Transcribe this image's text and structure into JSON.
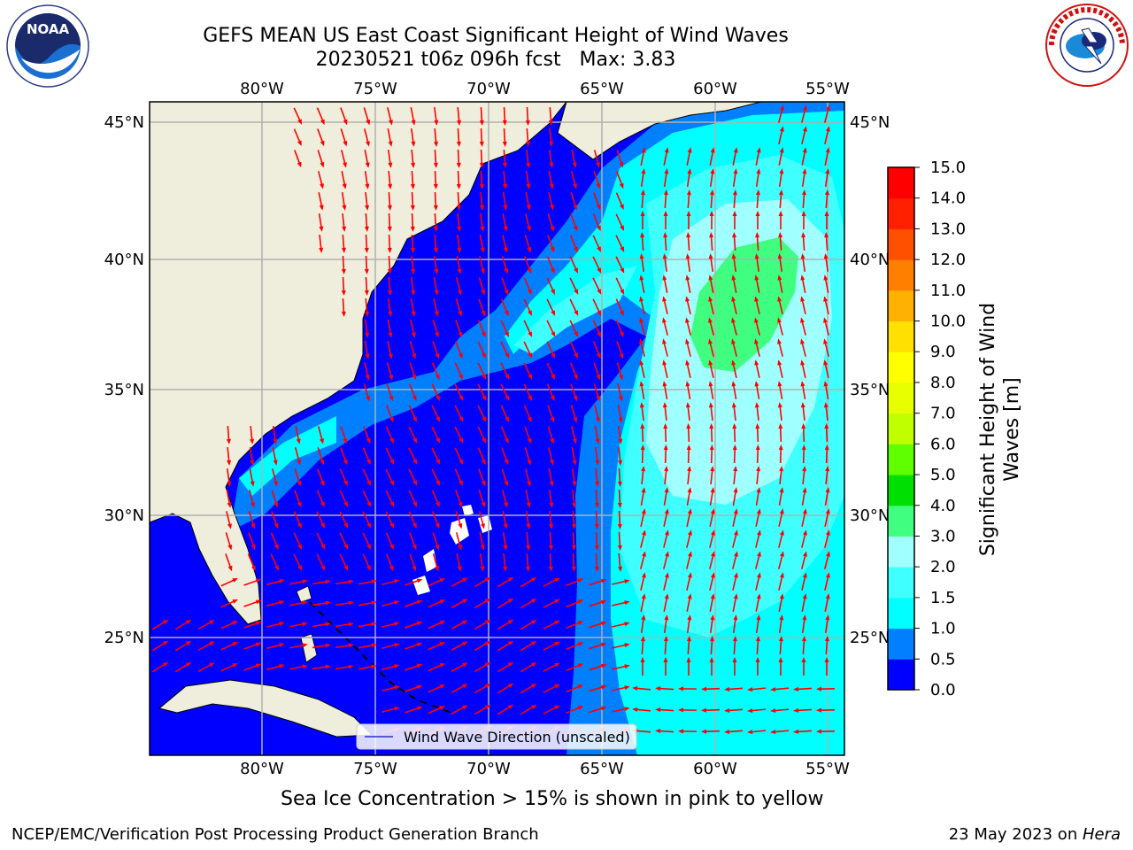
{
  "header": {
    "title_line1": "GEFS MEAN US East Coast Significant Height of Wind Waves",
    "title_line2": "20230521 t06z 096h fcst   Max: 3.83"
  },
  "logos": {
    "left": {
      "text": "NOAA",
      "ring_text": "NATIONAL OCEANIC AND ATMOSPHERIC ADMINISTRATION · U.S. DEPARTMENT OF COMMERCE",
      "icon": "noaa-logo"
    },
    "right": {
      "ring_text": "NATIONAL WEATHER SERVICE",
      "icon": "nws-logo"
    }
  },
  "map": {
    "lon_ticks": [
      "80°W",
      "75°W",
      "70°W",
      "65°W",
      "60°W",
      "55°W"
    ],
    "lat_ticks": [
      "45°N",
      "40°N",
      "35°N",
      "30°N",
      "25°N"
    ],
    "legend_label": "Wind Wave Direction (unscaled)",
    "colors": {
      "land": "#efeedc",
      "ocean_low": "#0000ff",
      "arrow": "#ff0000",
      "grid": "#b0b0b0"
    }
  },
  "colorbar": {
    "label_line1": "Significant Height of Wind",
    "label_line2": "Waves [m]",
    "ticks": [
      "0.0",
      "0.5",
      "1.0",
      "1.5",
      "2.0",
      "3.0",
      "4.0",
      "5.0",
      "6.0",
      "7.0",
      "8.0",
      "9.0",
      "10.0",
      "11.0",
      "12.0",
      "13.0",
      "14.0",
      "15.0"
    ],
    "colors": [
      "#0000ff",
      "#0080ff",
      "#00ffff",
      "#40ffff",
      "#a0ffff",
      "#40ff80",
      "#00e000",
      "#60ff00",
      "#c0ff00",
      "#e8ff00",
      "#ffff00",
      "#ffe000",
      "#ffb000",
      "#ff8000",
      "#ff5000",
      "#ff2000",
      "#ff0000"
    ]
  },
  "note": "Sea Ice Concentration > 15% is shown in pink to yellow",
  "footer": {
    "left": "NCEP/EMC/Verification Post Processing Product Generation Branch",
    "right_date": "23 May 2023 on ",
    "right_host": "Hera"
  }
}
